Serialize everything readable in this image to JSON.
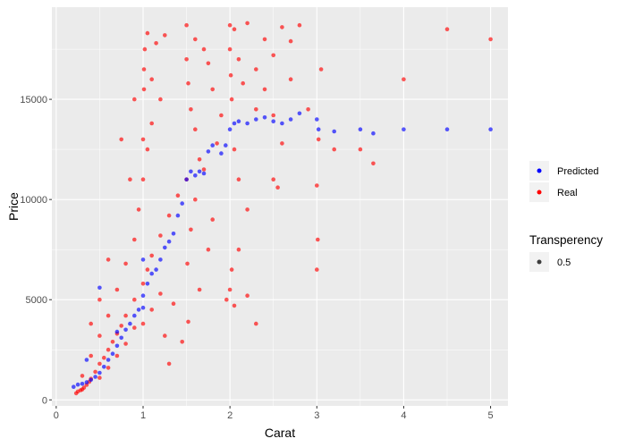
{
  "chart_data": {
    "type": "scatter",
    "xlabel": "Carat",
    "ylabel": "Price",
    "xlim": [
      -0.05,
      5.2
    ],
    "ylim": [
      -300,
      19600
    ],
    "x_ticks": [
      0,
      1,
      2,
      3,
      4,
      5
    ],
    "x_tick_labels": [
      "0",
      "1",
      "2",
      "3",
      "4",
      "5"
    ],
    "y_ticks": [
      0,
      5000,
      10000,
      15000
    ],
    "y_tick_labels": [
      "0",
      "5000",
      "10000",
      "15000"
    ],
    "grid": true,
    "background": "#ebebeb",
    "legend_placement": "right",
    "legend": {
      "colour_items": [
        {
          "label": "Predicted",
          "color": "#0000ff"
        },
        {
          "label": "Real",
          "color": "#ff0000"
        }
      ],
      "alpha_title": "Transperency",
      "alpha_items": [
        {
          "label": "0.5"
        }
      ]
    },
    "series": [
      {
        "name": "Real",
        "color": "#ff0000",
        "alpha": 0.5,
        "points": [
          [
            0.23,
            330
          ],
          [
            0.25,
            420
          ],
          [
            0.28,
            480
          ],
          [
            0.3,
            520
          ],
          [
            0.32,
            610
          ],
          [
            0.35,
            750
          ],
          [
            0.38,
            900
          ],
          [
            0.4,
            1050
          ],
          [
            0.45,
            1400
          ],
          [
            0.5,
            1800
          ],
          [
            0.55,
            2100
          ],
          [
            0.6,
            2500
          ],
          [
            0.65,
            2900
          ],
          [
            0.7,
            3300
          ],
          [
            0.75,
            3700
          ],
          [
            0.8,
            4200
          ],
          [
            0.9,
            5000
          ],
          [
            1.0,
            5800
          ],
          [
            1.05,
            6500
          ],
          [
            1.1,
            7200
          ],
          [
            1.2,
            8200
          ],
          [
            1.3,
            9200
          ],
          [
            1.4,
            10200
          ],
          [
            1.5,
            11000
          ],
          [
            0.3,
            1200
          ],
          [
            0.4,
            2200
          ],
          [
            0.5,
            3200
          ],
          [
            0.6,
            4200
          ],
          [
            0.7,
            5500
          ],
          [
            0.8,
            6800
          ],
          [
            0.9,
            8000
          ],
          [
            0.5,
            1100
          ],
          [
            0.6,
            1600
          ],
          [
            0.7,
            2200
          ],
          [
            0.8,
            2800
          ],
          [
            0.9,
            3600
          ],
          [
            1.0,
            3800
          ],
          [
            1.1,
            4500
          ],
          [
            1.2,
            5300
          ],
          [
            0.95,
            9500
          ],
          [
            1.0,
            11000
          ],
          [
            1.0,
            13000
          ],
          [
            1.01,
            15500
          ],
          [
            1.01,
            16500
          ],
          [
            1.02,
            17500
          ],
          [
            1.05,
            18300
          ],
          [
            1.1,
            16000
          ],
          [
            1.15,
            17800
          ],
          [
            1.2,
            15000
          ],
          [
            1.25,
            18200
          ],
          [
            1.05,
            12500
          ],
          [
            1.1,
            13800
          ],
          [
            1.5,
            17000
          ],
          [
            1.5,
            18700
          ],
          [
            1.52,
            15800
          ],
          [
            1.55,
            14500
          ],
          [
            1.6,
            13500
          ],
          [
            1.6,
            18000
          ],
          [
            1.65,
            12000
          ],
          [
            1.7,
            17500
          ],
          [
            1.75,
            16800
          ],
          [
            1.8,
            15500
          ],
          [
            1.85,
            12800
          ],
          [
            1.9,
            14200
          ],
          [
            1.51,
            6800
          ],
          [
            1.55,
            8500
          ],
          [
            1.6,
            10000
          ],
          [
            1.7,
            11500
          ],
          [
            1.8,
            9000
          ],
          [
            1.52,
            3900
          ],
          [
            1.65,
            5500
          ],
          [
            1.75,
            7500
          ],
          [
            2.0,
            18700
          ],
          [
            2.0,
            17500
          ],
          [
            2.01,
            16200
          ],
          [
            2.02,
            15000
          ],
          [
            2.05,
            18500
          ],
          [
            2.1,
            17000
          ],
          [
            2.15,
            15800
          ],
          [
            2.2,
            18800
          ],
          [
            2.3,
            16500
          ],
          [
            2.4,
            18000
          ],
          [
            2.5,
            17200
          ],
          [
            2.6,
            18600
          ],
          [
            2.7,
            17900
          ],
          [
            2.8,
            18700
          ],
          [
            2.05,
            12500
          ],
          [
            2.1,
            11000
          ],
          [
            2.2,
            9500
          ],
          [
            2.3,
            14500
          ],
          [
            2.4,
            15500
          ],
          [
            2.5,
            14200
          ],
          [
            2.55,
            10600
          ],
          [
            1.96,
            5000
          ],
          [
            2.0,
            5500
          ],
          [
            2.02,
            6500
          ],
          [
            2.05,
            4700
          ],
          [
            2.1,
            7500
          ],
          [
            2.2,
            5200
          ],
          [
            2.3,
            3800
          ],
          [
            2.5,
            11000
          ],
          [
            2.6,
            12800
          ],
          [
            2.7,
            16000
          ],
          [
            2.9,
            14500
          ],
          [
            3.0,
            10700
          ],
          [
            3.0,
            6500
          ],
          [
            3.01,
            8000
          ],
          [
            3.02,
            13000
          ],
          [
            3.05,
            16500
          ],
          [
            3.2,
            12500
          ],
          [
            3.5,
            12500
          ],
          [
            3.65,
            11800
          ],
          [
            4.0,
            16000
          ],
          [
            4.5,
            18500
          ],
          [
            5.0,
            18000
          ],
          [
            0.9,
            15000
          ],
          [
            0.75,
            13000
          ],
          [
            0.85,
            11000
          ],
          [
            0.6,
            7000
          ],
          [
            0.5,
            5000
          ],
          [
            0.4,
            3800
          ],
          [
            1.3,
            1800
          ],
          [
            1.45,
            2900
          ],
          [
            1.35,
            4800
          ],
          [
            1.25,
            3200
          ]
        ]
      },
      {
        "name": "Predicted",
        "color": "#0000ff",
        "alpha": 0.5,
        "points": [
          [
            0.2,
            650
          ],
          [
            0.25,
            760
          ],
          [
            0.3,
            800
          ],
          [
            0.35,
            880
          ],
          [
            0.4,
            1000
          ],
          [
            0.45,
            1150
          ],
          [
            0.5,
            1350
          ],
          [
            0.55,
            1650
          ],
          [
            0.6,
            2000
          ],
          [
            0.65,
            2300
          ],
          [
            0.7,
            2700
          ],
          [
            0.75,
            3100
          ],
          [
            0.8,
            3500
          ],
          [
            0.85,
            3800
          ],
          [
            0.9,
            4200
          ],
          [
            0.95,
            4500
          ],
          [
            1.0,
            5200
          ],
          [
            1.0,
            7000
          ],
          [
            1.05,
            5800
          ],
          [
            1.1,
            6300
          ],
          [
            1.15,
            6500
          ],
          [
            1.2,
            7000
          ],
          [
            1.25,
            7600
          ],
          [
            1.3,
            7900
          ],
          [
            1.35,
            8300
          ],
          [
            1.4,
            9200
          ],
          [
            1.45,
            9800
          ],
          [
            1.5,
            11000
          ],
          [
            1.55,
            11400
          ],
          [
            1.6,
            11200
          ],
          [
            1.65,
            11400
          ],
          [
            1.7,
            11300
          ],
          [
            1.75,
            12400
          ],
          [
            1.8,
            12700
          ],
          [
            1.9,
            12300
          ],
          [
            1.95,
            12700
          ],
          [
            2.0,
            13500
          ],
          [
            2.05,
            13800
          ],
          [
            2.1,
            13900
          ],
          [
            2.2,
            13800
          ],
          [
            2.3,
            14000
          ],
          [
            2.4,
            14100
          ],
          [
            2.5,
            13900
          ],
          [
            2.6,
            13800
          ],
          [
            2.7,
            14000
          ],
          [
            2.8,
            14300
          ],
          [
            3.0,
            14000
          ],
          [
            3.02,
            13500
          ],
          [
            3.2,
            13400
          ],
          [
            3.5,
            13500
          ],
          [
            3.65,
            13300
          ],
          [
            4.0,
            13500
          ],
          [
            4.5,
            13500
          ],
          [
            5.0,
            13500
          ],
          [
            0.5,
            5600
          ],
          [
            0.35,
            2000
          ],
          [
            0.7,
            3400
          ],
          [
            1.0,
            4600
          ]
        ]
      }
    ]
  }
}
